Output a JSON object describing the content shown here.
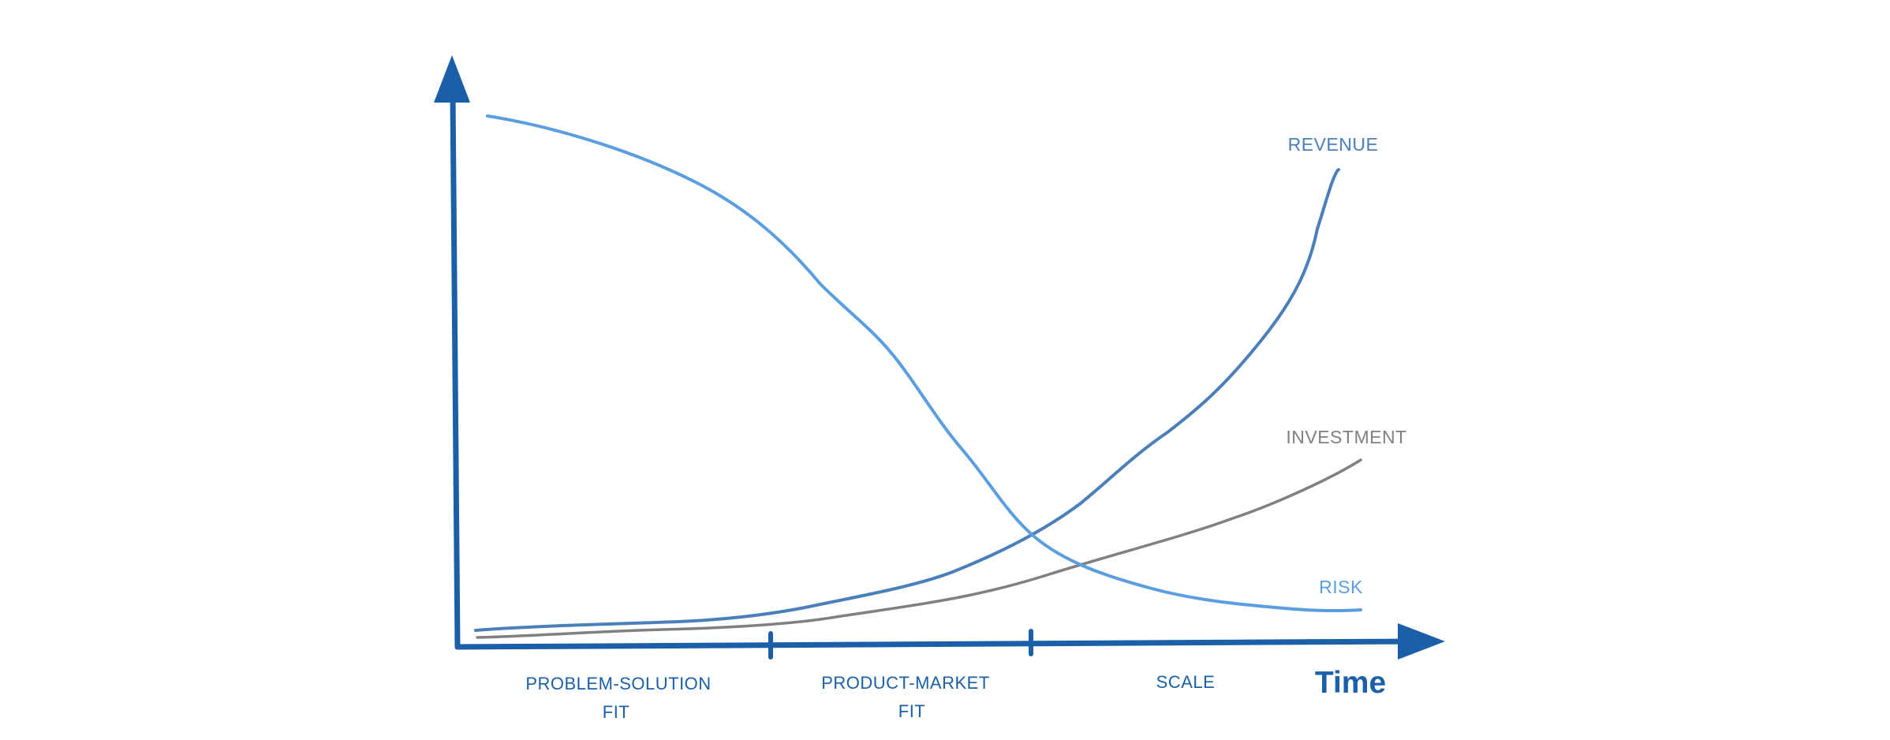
{
  "colors": {
    "axis": "#1a5fa8",
    "revenue": "#4a7fba",
    "investment": "#808080",
    "risk": "#5b9ee0",
    "phase_text": "#1a5fa8",
    "time_text": "#1a5fa8"
  },
  "axes": {
    "x_label": "Time"
  },
  "curves": {
    "revenue": {
      "label": "REVENUE"
    },
    "investment": {
      "label": "INVESTMENT"
    },
    "risk": {
      "label": "RISK"
    }
  },
  "phases": [
    {
      "line1": "PROBLEM-SOLUTION",
      "line2": "FIT"
    },
    {
      "line1": "PRODUCT-MARKET",
      "line2": "FIT"
    },
    {
      "line1": "SCALE",
      "line2": ""
    }
  ]
}
